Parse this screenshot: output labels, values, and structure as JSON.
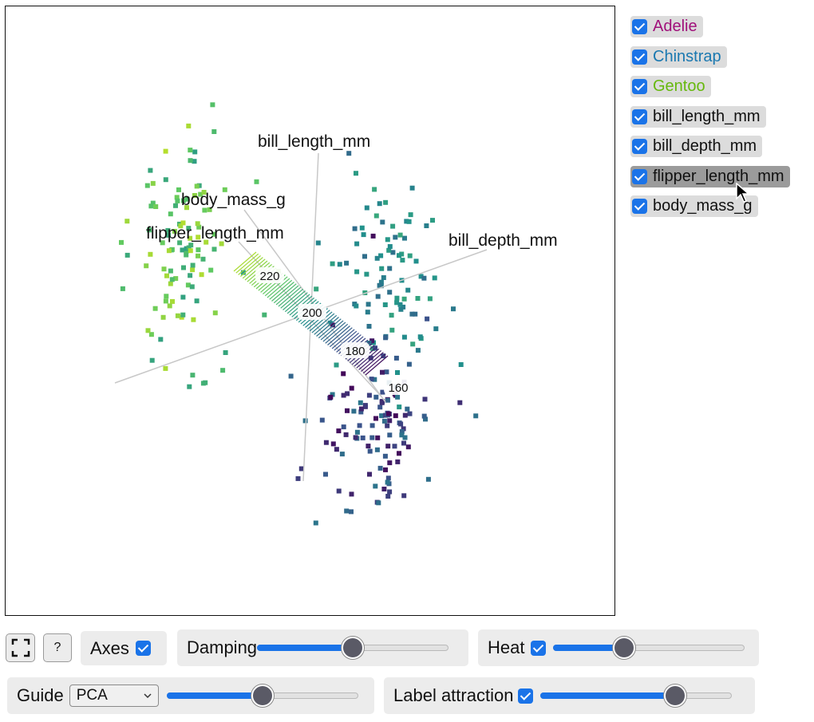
{
  "legend": {
    "items": [
      {
        "label": "Adelie",
        "color": "#a0107a",
        "checked": true
      },
      {
        "label": "Chinstrap",
        "color": "#1a78b0",
        "checked": true
      },
      {
        "label": "Gentoo",
        "color": "#66b80d",
        "checked": true
      },
      {
        "label": "bill_length_mm",
        "color": "#111111",
        "checked": true
      },
      {
        "label": "bill_depth_mm",
        "color": "#111111",
        "checked": true
      },
      {
        "label": "flipper_length_mm",
        "color": "#111111",
        "checked": true,
        "active": true
      },
      {
        "label": "body_mass_g",
        "color": "#111111",
        "checked": true
      }
    ]
  },
  "plot": {
    "axis_labels": {
      "bill_length": "bill_length_mm",
      "body_mass": "body_mass_g",
      "flipper_length": "flipper_length_mm",
      "bill_depth": "bill_depth_mm"
    },
    "ticks": [
      "220",
      "200",
      "180",
      "160"
    ]
  },
  "controls": {
    "fullscreen_icon": "fullscreen-icon",
    "help_label": "?",
    "axes_label": "Axes",
    "axes_checked": true,
    "damping_label": "Damping",
    "damping_value": 0.5,
    "heat_label": "Heat",
    "heat_checked": true,
    "heat_value": 0.35,
    "guide_label": "Guide",
    "guide_value": "PCA",
    "guide_slider_value": 0.5,
    "label_attraction_label": "Label attraction",
    "label_attraction_checked": true,
    "label_attraction_value": 0.73
  }
}
